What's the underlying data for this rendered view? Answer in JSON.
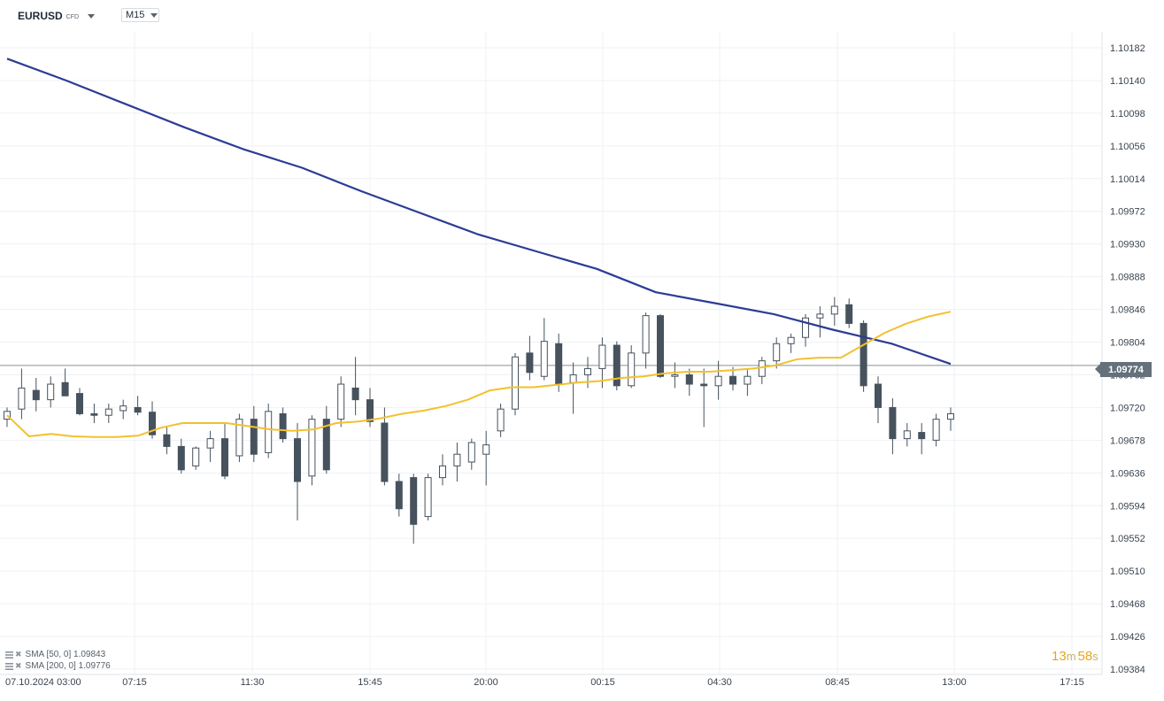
{
  "header": {
    "symbol": "EURUSD",
    "symbol_type": "CFD",
    "timeframe": "M15"
  },
  "countdown": {
    "minutes": "13",
    "minutes_unit": "m",
    "seconds": "58",
    "seconds_unit": "s"
  },
  "current_price": "1.09774",
  "legend": [
    {
      "label": "SMA [50, 0] 1.09843",
      "color": "#f2c12e"
    },
    {
      "label": "SMA [200, 0] 1.09776",
      "color": "#2c3c94"
    }
  ],
  "chart_data": {
    "type": "candlestick",
    "timeframe": "M15",
    "price_ticks": [
      "1.10182",
      "1.10140",
      "1.10098",
      "1.10056",
      "1.10014",
      "1.09972",
      "1.09930",
      "1.09888",
      "1.09846",
      "1.09804",
      "1.09762",
      "1.09720",
      "1.09678",
      "1.09636",
      "1.09594",
      "1.09552",
      "1.09510",
      "1.09468",
      "1.09426",
      "1.09384"
    ],
    "ylim": [
      1.09384,
      1.10182
    ],
    "time_ticks": [
      "07.10.2024  03:00",
      "07:15",
      "11:30",
      "15:45",
      "20:00",
      "00:15",
      "04:30",
      "08:45",
      "13:00",
      "17:15"
    ],
    "last_price": 1.09774,
    "colors": {
      "bull_fill": "#ffffff",
      "bear_fill": "#46525d",
      "wick": "#46525d",
      "sma50": "#f2c12e",
      "sma200": "#2c3c94",
      "grid": "#eef1f4",
      "price_line": "#8a9199"
    },
    "series": [
      {
        "name": "SMA [50, 0]",
        "values": [
          1.0971,
          1.09683,
          1.09686,
          1.09683,
          1.09682,
          1.09682,
          1.09684,
          1.09694,
          1.097,
          1.097,
          1.097,
          1.09696,
          1.09692,
          1.0969,
          1.09692,
          1.097,
          1.09702,
          1.09706,
          1.09712,
          1.09716,
          1.09722,
          1.0973,
          1.09742,
          1.09746,
          1.09746,
          1.09749,
          1.09752,
          1.09754,
          1.09758,
          1.0976,
          1.09764,
          1.09766,
          1.09766,
          1.09768,
          1.0977,
          1.09774,
          1.09782,
          1.09784,
          1.09784,
          1.098,
          1.09816,
          1.09828,
          1.09837,
          1.09843
        ]
      },
      {
        "name": "SMA [200, 0]",
        "values": [
          1.10168,
          1.1014,
          1.1011,
          1.1008,
          1.10052,
          1.10028,
          1.09998,
          1.0997,
          1.09942,
          1.0992,
          1.09898,
          1.09868,
          1.09854,
          1.0984,
          1.0982,
          1.09802,
          1.09776
        ]
      }
    ],
    "candles": [
      {
        "o": 1.09705,
        "h": 1.0972,
        "l": 1.09695,
        "c": 1.09715
      },
      {
        "o": 1.09718,
        "h": 1.0977,
        "l": 1.09705,
        "c": 1.09745
      },
      {
        "o": 1.09742,
        "h": 1.09758,
        "l": 1.09715,
        "c": 1.0973
      },
      {
        "o": 1.0973,
        "h": 1.0976,
        "l": 1.0972,
        "c": 1.0975
      },
      {
        "o": 1.09752,
        "h": 1.0977,
        "l": 1.09738,
        "c": 1.09735
      },
      {
        "o": 1.09738,
        "h": 1.09745,
        "l": 1.0971,
        "c": 1.09712
      },
      {
        "o": 1.09712,
        "h": 1.09725,
        "l": 1.097,
        "c": 1.0971
      },
      {
        "o": 1.0971,
        "h": 1.09725,
        "l": 1.097,
        "c": 1.09718
      },
      {
        "o": 1.09716,
        "h": 1.0973,
        "l": 1.09705,
        "c": 1.09722
      },
      {
        "o": 1.0972,
        "h": 1.09735,
        "l": 1.0971,
        "c": 1.09714
      },
      {
        "o": 1.09714,
        "h": 1.09728,
        "l": 1.0968,
        "c": 1.09685
      },
      {
        "o": 1.09685,
        "h": 1.09695,
        "l": 1.0966,
        "c": 1.0967
      },
      {
        "o": 1.0967,
        "h": 1.0968,
        "l": 1.09635,
        "c": 1.0964
      },
      {
        "o": 1.09645,
        "h": 1.0967,
        "l": 1.0964,
        "c": 1.09668
      },
      {
        "o": 1.09668,
        "h": 1.0969,
        "l": 1.0965,
        "c": 1.0968
      },
      {
        "o": 1.0968,
        "h": 1.097,
        "l": 1.09628,
        "c": 1.09632
      },
      {
        "o": 1.09658,
        "h": 1.09712,
        "l": 1.0965,
        "c": 1.09705
      },
      {
        "o": 1.09705,
        "h": 1.09722,
        "l": 1.0965,
        "c": 1.0966
      },
      {
        "o": 1.09662,
        "h": 1.09725,
        "l": 1.09655,
        "c": 1.09715
      },
      {
        "o": 1.09712,
        "h": 1.0972,
        "l": 1.09675,
        "c": 1.0968
      },
      {
        "o": 1.0968,
        "h": 1.097,
        "l": 1.09575,
        "c": 1.09625
      },
      {
        "o": 1.09632,
        "h": 1.0971,
        "l": 1.0962,
        "c": 1.09705
      },
      {
        "o": 1.09705,
        "h": 1.09722,
        "l": 1.09635,
        "c": 1.0964
      },
      {
        "o": 1.09705,
        "h": 1.0976,
        "l": 1.09695,
        "c": 1.0975
      },
      {
        "o": 1.09745,
        "h": 1.09785,
        "l": 1.0971,
        "c": 1.0973
      },
      {
        "o": 1.0973,
        "h": 1.09745,
        "l": 1.09695,
        "c": 1.09702
      },
      {
        "o": 1.097,
        "h": 1.0972,
        "l": 1.0962,
        "c": 1.09625
      },
      {
        "o": 1.09625,
        "h": 1.09635,
        "l": 1.0958,
        "c": 1.0959
      },
      {
        "o": 1.0963,
        "h": 1.09635,
        "l": 1.09545,
        "c": 1.0957
      },
      {
        "o": 1.0958,
        "h": 1.09635,
        "l": 1.09575,
        "c": 1.0963
      },
      {
        "o": 1.0963,
        "h": 1.0966,
        "l": 1.0962,
        "c": 1.09645
      },
      {
        "o": 1.09645,
        "h": 1.09675,
        "l": 1.09625,
        "c": 1.0966
      },
      {
        "o": 1.0965,
        "h": 1.0968,
        "l": 1.0964,
        "c": 1.09675
      },
      {
        "o": 1.0966,
        "h": 1.0969,
        "l": 1.0962,
        "c": 1.09672
      },
      {
        "o": 1.0969,
        "h": 1.09725,
        "l": 1.09682,
        "c": 1.09718
      },
      {
        "o": 1.09718,
        "h": 1.0979,
        "l": 1.0971,
        "c": 1.09785
      },
      {
        "o": 1.0979,
        "h": 1.09812,
        "l": 1.09755,
        "c": 1.09765
      },
      {
        "o": 1.0976,
        "h": 1.09835,
        "l": 1.09755,
        "c": 1.09805
      },
      {
        "o": 1.09802,
        "h": 1.09815,
        "l": 1.0974,
        "c": 1.0975
      },
      {
        "o": 1.09752,
        "h": 1.09778,
        "l": 1.09712,
        "c": 1.09762
      },
      {
        "o": 1.09762,
        "h": 1.09785,
        "l": 1.09745,
        "c": 1.0977
      },
      {
        "o": 1.0977,
        "h": 1.0981,
        "l": 1.09745,
        "c": 1.098
      },
      {
        "o": 1.098,
        "h": 1.09805,
        "l": 1.09742,
        "c": 1.09748
      },
      {
        "o": 1.09748,
        "h": 1.098,
        "l": 1.09745,
        "c": 1.0979
      },
      {
        "o": 1.0979,
        "h": 1.09842,
        "l": 1.0977,
        "c": 1.09838
      },
      {
        "o": 1.09838,
        "h": 1.0984,
        "l": 1.09758,
        "c": 1.0976
      },
      {
        "o": 1.0976,
        "h": 1.09778,
        "l": 1.09745,
        "c": 1.09762
      },
      {
        "o": 1.09762,
        "h": 1.0977,
        "l": 1.09735,
        "c": 1.0975
      },
      {
        "o": 1.0975,
        "h": 1.0977,
        "l": 1.09695,
        "c": 1.09748
      },
      {
        "o": 1.09748,
        "h": 1.0978,
        "l": 1.0973,
        "c": 1.0976
      },
      {
        "o": 1.0976,
        "h": 1.09772,
        "l": 1.09742,
        "c": 1.0975
      },
      {
        "o": 1.0975,
        "h": 1.0977,
        "l": 1.09735,
        "c": 1.0976
      },
      {
        "o": 1.0976,
        "h": 1.09785,
        "l": 1.0975,
        "c": 1.0978
      },
      {
        "o": 1.0978,
        "h": 1.0981,
        "l": 1.0977,
        "c": 1.09802
      },
      {
        "o": 1.09802,
        "h": 1.09815,
        "l": 1.0979,
        "c": 1.0981
      },
      {
        "o": 1.0981,
        "h": 1.0984,
        "l": 1.09798,
        "c": 1.09835
      },
      {
        "o": 1.09835,
        "h": 1.0985,
        "l": 1.0981,
        "c": 1.0984
      },
      {
        "o": 1.0984,
        "h": 1.09862,
        "l": 1.09825,
        "c": 1.0985
      },
      {
        "o": 1.09852,
        "h": 1.0986,
        "l": 1.09822,
        "c": 1.09828
      },
      {
        "o": 1.09828,
        "h": 1.09832,
        "l": 1.0974,
        "c": 1.09748
      },
      {
        "o": 1.0975,
        "h": 1.0976,
        "l": 1.097,
        "c": 1.0972
      },
      {
        "o": 1.0972,
        "h": 1.09732,
        "l": 1.0966,
        "c": 1.0968
      },
      {
        "o": 1.0968,
        "h": 1.097,
        "l": 1.0967,
        "c": 1.0969
      },
      {
        "o": 1.09688,
        "h": 1.097,
        "l": 1.0966,
        "c": 1.0968
      },
      {
        "o": 1.09678,
        "h": 1.09712,
        "l": 1.0967,
        "c": 1.09705
      },
      {
        "o": 1.09705,
        "h": 1.0972,
        "l": 1.0969,
        "c": 1.09712
      }
    ]
  }
}
